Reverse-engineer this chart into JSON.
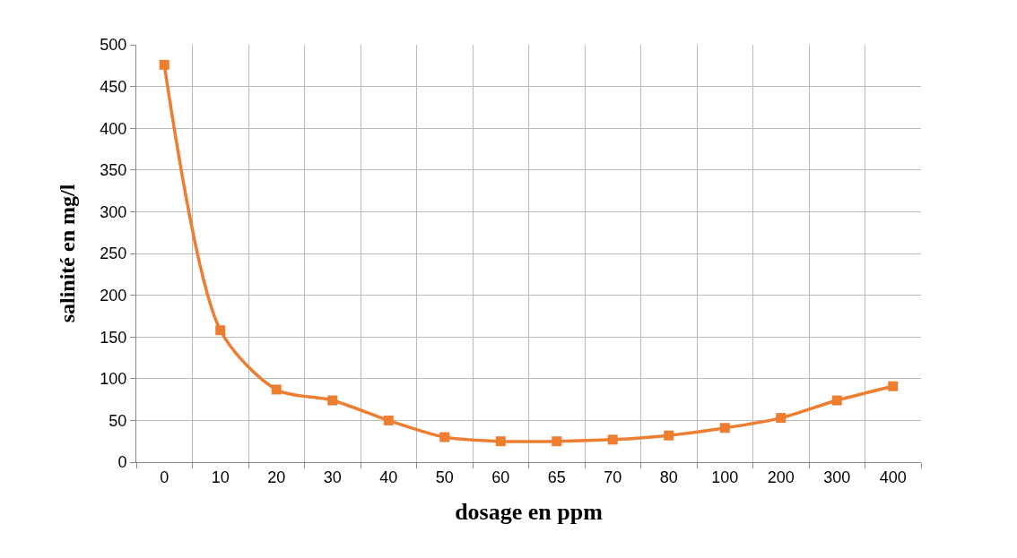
{
  "chart_data": {
    "type": "line",
    "xlabel": "dosage en ppm",
    "ylabel": "salinité en mg/l",
    "categories": [
      "0",
      "10",
      "20",
      "30",
      "40",
      "50",
      "60",
      "65",
      "70",
      "80",
      "100",
      "200",
      "300",
      "400"
    ],
    "series": [
      {
        "color": "#ed7d31",
        "values": [
          476,
          158,
          87,
          74,
          50,
          30,
          25,
          25,
          27,
          32,
          41,
          53,
          74,
          91
        ]
      }
    ],
    "ylim": [
      0,
      500
    ],
    "yticks": [
      0,
      50,
      100,
      150,
      200,
      250,
      300,
      350,
      400,
      450,
      500
    ],
    "grid": true,
    "legend": false,
    "marker": "square",
    "line_style": "solid"
  }
}
